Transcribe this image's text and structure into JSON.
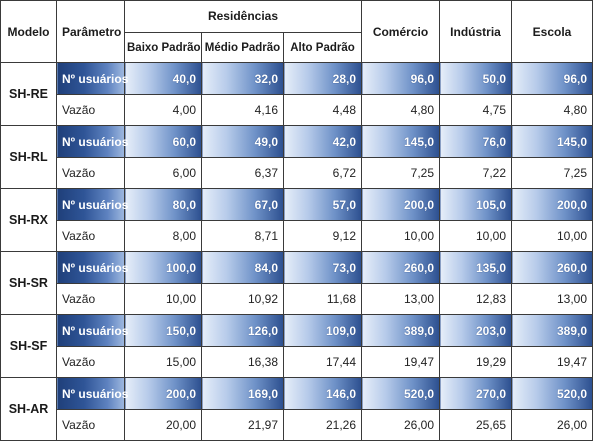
{
  "headers": {
    "model": "Modelo",
    "param": "Parâmetro",
    "residences": "Residências",
    "low": "Baixo Padrão",
    "mid": "Médio Padrão",
    "high": "Alto Padrão",
    "commerce": "Comércio",
    "industry": "Indústria",
    "school": "Escola"
  },
  "models": [
    {
      "name": "SH-RE",
      "users_label": "Nº usuários",
      "flow_label": "Vazão",
      "users": [
        "40,0",
        "32,0",
        "28,0",
        "96,0",
        "50,0",
        "96,0"
      ],
      "flow": [
        "4,00",
        "4,16",
        "4,48",
        "4,80",
        "4,75",
        "4,80"
      ]
    },
    {
      "name": "SH-RL",
      "users_label": "Nº usuários",
      "flow_label": "Vazão",
      "users": [
        "60,0",
        "49,0",
        "42,0",
        "145,0",
        "76,0",
        "145,0"
      ],
      "flow": [
        "6,00",
        "6,37",
        "6,72",
        "7,25",
        "7,22",
        "7,25"
      ]
    },
    {
      "name": "SH-RX",
      "users_label": "Nº usuários",
      "flow_label": "Vazão",
      "users": [
        "80,0",
        "67,0",
        "57,0",
        "200,0",
        "105,0",
        "200,0"
      ],
      "flow": [
        "8,00",
        "8,71",
        "9,12",
        "10,00",
        "10,00",
        "10,00"
      ]
    },
    {
      "name": "SH-SR",
      "users_label": "Nº usuários",
      "flow_label": "Vazão",
      "users": [
        "100,0",
        "84,0",
        "73,0",
        "260,0",
        "135,0",
        "260,0"
      ],
      "flow": [
        "10,00",
        "10,92",
        "11,68",
        "13,00",
        "12,83",
        "13,00"
      ]
    },
    {
      "name": "SH-SF",
      "users_label": "Nº usuários",
      "flow_label": "Vazão",
      "users": [
        "150,0",
        "126,0",
        "109,0",
        "389,0",
        "203,0",
        "389,0"
      ],
      "flow": [
        "15,00",
        "16,38",
        "17,44",
        "19,47",
        "19,29",
        "19,47"
      ]
    },
    {
      "name": "SH-AR",
      "users_label": "Nº usuários",
      "flow_label": "Vazão",
      "users": [
        "200,0",
        "169,0",
        "146,0",
        "520,0",
        "270,0",
        "520,0"
      ],
      "flow": [
        "20,00",
        "21,97",
        "21,26",
        "26,00",
        "25,65",
        "26,00"
      ]
    }
  ]
}
